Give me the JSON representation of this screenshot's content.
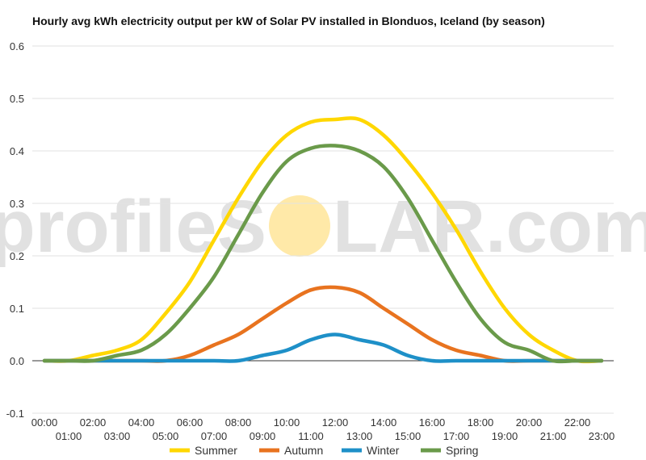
{
  "chart_data": {
    "type": "line",
    "title": "Hourly avg kWh electricity output per kW of Solar PV installed in Blonduos, Iceland (by season)",
    "xlabel": "",
    "ylabel": "",
    "ylim": [
      -0.1,
      0.6
    ],
    "yticks": [
      -0.1,
      0.0,
      0.1,
      0.2,
      0.3,
      0.4,
      0.5,
      0.6
    ],
    "grid": true,
    "legend_position": "bottom",
    "categories": [
      "00:00",
      "01:00",
      "02:00",
      "03:00",
      "04:00",
      "05:00",
      "06:00",
      "07:00",
      "08:00",
      "09:00",
      "10:00",
      "11:00",
      "12:00",
      "13:00",
      "14:00",
      "15:00",
      "16:00",
      "17:00",
      "18:00",
      "19:00",
      "20:00",
      "21:00",
      "22:00",
      "23:00"
    ],
    "tick_labels_row1": [
      "00:00",
      "02:00",
      "04:00",
      "06:00",
      "08:00",
      "10:00",
      "12:00",
      "14:00",
      "16:00",
      "18:00",
      "20:00",
      "22:00"
    ],
    "tick_labels_row2": [
      "01:00",
      "03:00",
      "05:00",
      "07:00",
      "09:00",
      "11:00",
      "13:00",
      "15:00",
      "17:00",
      "19:00",
      "21:00",
      "23:00"
    ],
    "series": [
      {
        "name": "Summer",
        "color": "#FFD700",
        "values": [
          0.0,
          0.0,
          0.01,
          0.02,
          0.04,
          0.09,
          0.15,
          0.23,
          0.31,
          0.38,
          0.43,
          0.455,
          0.46,
          0.46,
          0.43,
          0.38,
          0.32,
          0.25,
          0.17,
          0.1,
          0.05,
          0.02,
          0.0,
          0.0
        ]
      },
      {
        "name": "Autumn",
        "color": "#E8731F",
        "values": [
          0.0,
          0.0,
          0.0,
          0.0,
          0.0,
          0.0,
          0.01,
          0.03,
          0.05,
          0.08,
          0.11,
          0.135,
          0.14,
          0.13,
          0.1,
          0.07,
          0.04,
          0.02,
          0.01,
          0.0,
          0.0,
          0.0,
          0.0,
          0.0
        ]
      },
      {
        "name": "Winter",
        "color": "#1E90C8",
        "values": [
          0.0,
          0.0,
          0.0,
          0.0,
          0.0,
          0.0,
          0.0,
          0.0,
          0.0,
          0.01,
          0.02,
          0.04,
          0.05,
          0.04,
          0.03,
          0.01,
          0.0,
          0.0,
          0.0,
          0.0,
          0.0,
          0.0,
          0.0,
          0.0
        ]
      },
      {
        "name": "Spring",
        "color": "#6A9A4A",
        "values": [
          0.0,
          0.0,
          0.0,
          0.01,
          0.02,
          0.05,
          0.1,
          0.16,
          0.24,
          0.32,
          0.38,
          0.405,
          0.41,
          0.4,
          0.37,
          0.31,
          0.23,
          0.15,
          0.08,
          0.035,
          0.02,
          0.0,
          0.0,
          0.0
        ]
      }
    ]
  },
  "watermark": {
    "text_left": "profileS",
    "text_right": "LAR.com",
    "sun_color": "#FFE9A8"
  }
}
